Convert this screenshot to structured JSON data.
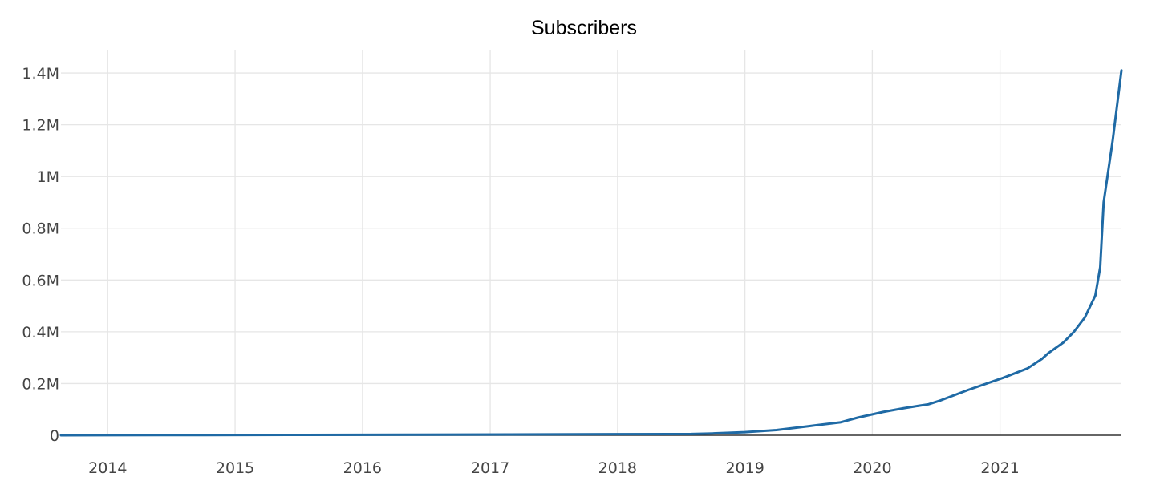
{
  "chart_data": {
    "type": "line",
    "title": "Subscribers",
    "xlabel": "",
    "ylabel": "",
    "x_axis": {
      "kind": "date",
      "range": [
        "2013-08-20",
        "2021-12-15"
      ],
      "ticks": [
        {
          "value": "2014-01-01",
          "label": "2014"
        },
        {
          "value": "2015-01-01",
          "label": "2015"
        },
        {
          "value": "2016-01-01",
          "label": "2016"
        },
        {
          "value": "2017-01-01",
          "label": "2017"
        },
        {
          "value": "2018-01-01",
          "label": "2018"
        },
        {
          "value": "2019-01-01",
          "label": "2019"
        },
        {
          "value": "2020-01-01",
          "label": "2020"
        },
        {
          "value": "2021-01-01",
          "label": "2021"
        }
      ]
    },
    "y_axis": {
      "range": [
        0,
        1490000
      ],
      "ticks": [
        {
          "value": 0,
          "label": "0"
        },
        {
          "value": 200000,
          "label": "0.2M"
        },
        {
          "value": 400000,
          "label": "0.4M"
        },
        {
          "value": 600000,
          "label": "0.6M"
        },
        {
          "value": 800000,
          "label": "0.8M"
        },
        {
          "value": 1000000,
          "label": "1M"
        },
        {
          "value": 1200000,
          "label": "1.2M"
        },
        {
          "value": 1400000,
          "label": "1.4M"
        }
      ]
    },
    "grid": true,
    "legend": "none",
    "series": [
      {
        "color": "#1f6aa5",
        "points": [
          {
            "x": "2013-08-20",
            "y": 0
          },
          {
            "x": "2014-06-01",
            "y": 500
          },
          {
            "x": "2015-06-01",
            "y": 1500
          },
          {
            "x": "2016-06-01",
            "y": 2500
          },
          {
            "x": "2017-06-01",
            "y": 3500
          },
          {
            "x": "2018-06-01",
            "y": 4500
          },
          {
            "x": "2018-08-01",
            "y": 5000
          },
          {
            "x": "2018-10-01",
            "y": 7000
          },
          {
            "x": "2019-01-01",
            "y": 12000
          },
          {
            "x": "2019-04-01",
            "y": 20000
          },
          {
            "x": "2019-07-01",
            "y": 35000
          },
          {
            "x": "2019-10-01",
            "y": 50000
          },
          {
            "x": "2019-11-20",
            "y": 68000
          },
          {
            "x": "2020-02-01",
            "y": 90000
          },
          {
            "x": "2020-04-01",
            "y": 105000
          },
          {
            "x": "2020-06-10",
            "y": 120000
          },
          {
            "x": "2020-07-15",
            "y": 135000
          },
          {
            "x": "2020-10-01",
            "y": 175000
          },
          {
            "x": "2021-01-10",
            "y": 222000
          },
          {
            "x": "2021-03-20",
            "y": 258000
          },
          {
            "x": "2021-05-01",
            "y": 295000
          },
          {
            "x": "2021-05-20",
            "y": 318000
          },
          {
            "x": "2021-07-01",
            "y": 358000
          },
          {
            "x": "2021-08-01",
            "y": 400000
          },
          {
            "x": "2021-09-01",
            "y": 455000
          },
          {
            "x": "2021-10-01",
            "y": 540000
          },
          {
            "x": "2021-10-15",
            "y": 650000
          },
          {
            "x": "2021-10-25",
            "y": 900000
          },
          {
            "x": "2021-11-20",
            "y": 1140000
          },
          {
            "x": "2021-12-15",
            "y": 1410000
          }
        ]
      }
    ]
  }
}
